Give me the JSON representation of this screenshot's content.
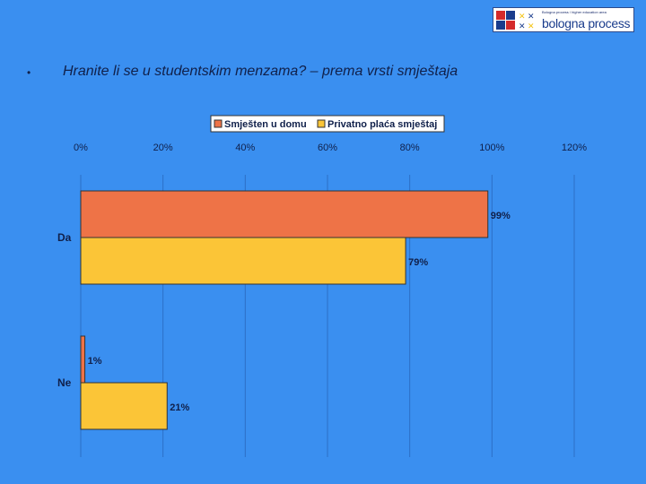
{
  "logo": {
    "small_text": "Bologna process / higher education area",
    "big_text": "bologna process",
    "colors": [
      "#d42a2a",
      "#1a3c8c",
      "#f4c20d"
    ]
  },
  "slide": {
    "bullet": "•",
    "title": "Hranite li se u studentskim menzama? – prema vrsti smještaja"
  },
  "chart_data": {
    "type": "bar",
    "orientation": "horizontal",
    "categories": [
      "Da",
      "Ne"
    ],
    "series": [
      {
        "name": "Smješten u domu",
        "values": [
          99,
          1
        ],
        "labels": [
          "99%",
          "1%"
        ],
        "color": "#ee7347"
      },
      {
        "name": "Privatno plaća smještaj",
        "values": [
          79,
          21
        ],
        "labels": [
          "79%",
          "21%"
        ],
        "color": "#fbc537"
      }
    ],
    "xticks": [
      "0%",
      "20%",
      "40%",
      "60%",
      "80%",
      "100%",
      "120%"
    ],
    "xlim": [
      0,
      120
    ],
    "grid": true,
    "legend": "top"
  }
}
